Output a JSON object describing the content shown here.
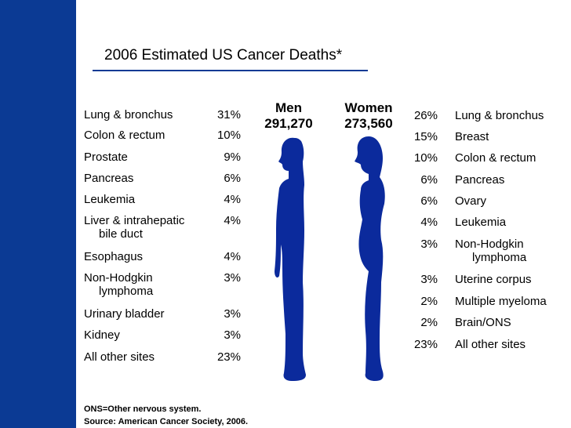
{
  "colors": {
    "sidebar": "#0b3a94",
    "figure": "#0b2a9c",
    "rule": "#0b3a94"
  },
  "title": "2006 Estimated US Cancer Deaths*",
  "men": {
    "heading": "Men",
    "total": "291,270",
    "rows": [
      {
        "label": "Lung & bronchus",
        "pct": "31%"
      },
      {
        "label": "Colon & rectum",
        "pct": "10%"
      },
      {
        "label": "Prostate",
        "pct": "9%"
      },
      {
        "label": "Pancreas",
        "pct": "6%"
      },
      {
        "label": "Leukemia",
        "pct": "4%"
      },
      {
        "label": "Liver & intrahepatic",
        "sub": "bile duct",
        "pct": "4%"
      },
      {
        "label": "Esophagus",
        "pct": "4%"
      },
      {
        "label": "Non-Hodgkin",
        "sub": "lymphoma",
        "pct": "3%"
      },
      {
        "label": "Urinary bladder",
        "pct": "3%"
      },
      {
        "label": "Kidney",
        "pct": "3%"
      },
      {
        "label": "All other sites",
        "pct": "23%"
      }
    ]
  },
  "women": {
    "heading": "Women",
    "total": "273,560",
    "rows": [
      {
        "pct": "26%",
        "label": "Lung & bronchus"
      },
      {
        "pct": "15%",
        "label": "Breast"
      },
      {
        "pct": "10%",
        "label": "Colon & rectum"
      },
      {
        "pct": "6%",
        "label": "Pancreas"
      },
      {
        "pct": "6%",
        "label": "Ovary"
      },
      {
        "pct": "4%",
        "label": "Leukemia"
      },
      {
        "pct": "3%",
        "label": "Non-Hodgkin",
        "sub": "lymphoma"
      },
      {
        "pct": "3%",
        "label": "Uterine corpus"
      },
      {
        "pct": "2%",
        "label": "Multiple myeloma"
      },
      {
        "pct": "2%",
        "label": "Brain/ONS"
      },
      {
        "pct": "23%",
        "label": "All other sites"
      }
    ]
  },
  "footnotes": {
    "ons": "ONS=Other nervous system.",
    "source": "Source: American Cancer Society, 2006."
  },
  "chart_data": {
    "type": "table",
    "title": "2006 Estimated US Cancer Deaths*",
    "series": [
      {
        "name": "Men",
        "total": 291270,
        "categories": [
          "Lung & bronchus",
          "Colon & rectum",
          "Prostate",
          "Pancreas",
          "Leukemia",
          "Liver & intrahepatic bile duct",
          "Esophagus",
          "Non-Hodgkin lymphoma",
          "Urinary bladder",
          "Kidney",
          "All other sites"
        ],
        "values": [
          31,
          10,
          9,
          6,
          4,
          4,
          4,
          3,
          3,
          3,
          23
        ]
      },
      {
        "name": "Women",
        "total": 273560,
        "categories": [
          "Lung & bronchus",
          "Breast",
          "Colon & rectum",
          "Pancreas",
          "Ovary",
          "Leukemia",
          "Non-Hodgkin lymphoma",
          "Uterine corpus",
          "Multiple myeloma",
          "Brain/ONS",
          "All other sites"
        ],
        "values": [
          26,
          15,
          10,
          6,
          6,
          4,
          3,
          3,
          2,
          2,
          23
        ]
      }
    ],
    "unit": "%"
  }
}
